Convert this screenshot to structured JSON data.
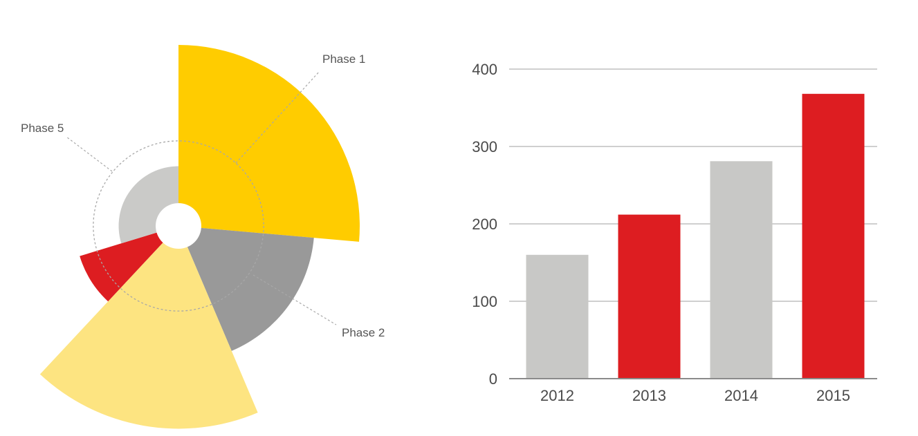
{
  "chart_data": [
    {
      "type": "polar-area",
      "segments": [
        {
          "label": "Phase 1",
          "start_deg": 0,
          "end_deg": 95,
          "radius_rel": 1.0,
          "color": "#FFCC00"
        },
        {
          "label": "Phase 2",
          "start_deg": 95,
          "end_deg": 157,
          "radius_rel": 0.75,
          "color": "#999999"
        },
        {
          "label": "",
          "start_deg": 157,
          "end_deg": 223,
          "radius_rel": 1.12,
          "color": "#FDE481"
        },
        {
          "label": "",
          "start_deg": 223,
          "end_deg": 253,
          "radius_rel": 0.57,
          "color": "#DD1D21"
        },
        {
          "label": "Phase 5",
          "start_deg": 253,
          "end_deg": 360,
          "radius_rel": 0.33,
          "color": "#CACAC8"
        }
      ],
      "reference_ring": {
        "radius_rel": 0.47,
        "style": "dotted"
      },
      "callouts": [
        {
          "text": "Phase 1"
        },
        {
          "text": "Phase 2"
        },
        {
          "text": "Phase 5"
        }
      ]
    },
    {
      "type": "bar",
      "categories": [
        "2012",
        "2013",
        "2014",
        "2015"
      ],
      "values": [
        160,
        212,
        281,
        368
      ],
      "colors": [
        "#C8C8C6",
        "#DD1D21",
        "#C8C8C6",
        "#DD1D21"
      ],
      "ylim": [
        0,
        400
      ],
      "yticks": [
        0,
        100,
        200,
        300,
        400
      ],
      "grid": true,
      "title": "",
      "xlabel": "",
      "ylabel": ""
    }
  ]
}
